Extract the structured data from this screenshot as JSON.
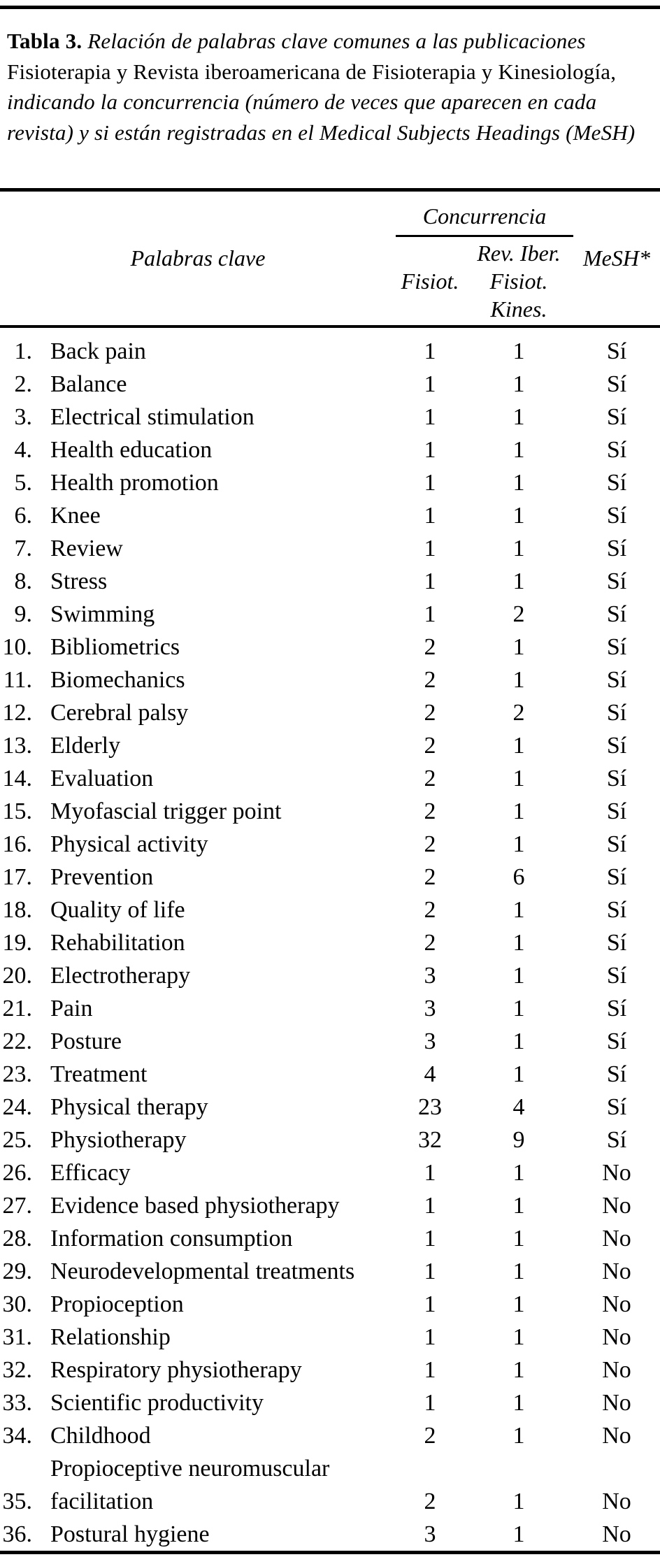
{
  "caption": {
    "segments": [
      {
        "style": "bold",
        "text": "Tabla 3. "
      },
      {
        "style": "italic",
        "text": "Relación de palabras clave comunes a las publicaciones "
      },
      {
        "style": "roman",
        "text": "Fisioterapia y Revista iberoamericana de Fisioterapia y Kinesiología, "
      },
      {
        "style": "italic",
        "text": "indicando la concurrencia (número de veces que aparecen en cada revista) y si están registradas en el Medical Subjects Headings (MeSH)"
      }
    ]
  },
  "table": {
    "headers": {
      "keywords": "Palabras clave",
      "concurrencia": "Concurrencia",
      "fisiot": "Fisiot.",
      "rev_iber_line1": "Rev. Iber.",
      "rev_iber_line2": "Fisiot. Kines.",
      "mesh": "MeSH*"
    },
    "rows": [
      {
        "num": "1.",
        "keyword": "Back pain",
        "fisiot": "1",
        "rev": "1",
        "mesh": "Sí"
      },
      {
        "num": "2.",
        "keyword": "Balance",
        "fisiot": "1",
        "rev": "1",
        "mesh": "Sí"
      },
      {
        "num": "3.",
        "keyword": "Electrical stimulation",
        "fisiot": "1",
        "rev": "1",
        "mesh": "Sí"
      },
      {
        "num": "4.",
        "keyword": "Health education",
        "fisiot": "1",
        "rev": "1",
        "mesh": "Sí"
      },
      {
        "num": "5.",
        "keyword": "Health promotion",
        "fisiot": "1",
        "rev": "1",
        "mesh": "Sí"
      },
      {
        "num": "6.",
        "keyword": "Knee",
        "fisiot": "1",
        "rev": "1",
        "mesh": "Sí"
      },
      {
        "num": "7.",
        "keyword": "Review",
        "fisiot": "1",
        "rev": "1",
        "mesh": "Sí"
      },
      {
        "num": "8.",
        "keyword": "Stress",
        "fisiot": "1",
        "rev": "1",
        "mesh": "Sí"
      },
      {
        "num": "9.",
        "keyword": "Swimming",
        "fisiot": "1",
        "rev": "2",
        "mesh": "Sí"
      },
      {
        "num": "10.",
        "keyword": "Bibliometrics",
        "fisiot": "2",
        "rev": "1",
        "mesh": "Sí"
      },
      {
        "num": "11.",
        "keyword": "Biomechanics",
        "fisiot": "2",
        "rev": "1",
        "mesh": "Sí"
      },
      {
        "num": "12.",
        "keyword": "Cerebral palsy",
        "fisiot": "2",
        "rev": "2",
        "mesh": "Sí"
      },
      {
        "num": "13.",
        "keyword": "Elderly",
        "fisiot": "2",
        "rev": "1",
        "mesh": "Sí"
      },
      {
        "num": "14.",
        "keyword": "Evaluation",
        "fisiot": "2",
        "rev": "1",
        "mesh": "Sí"
      },
      {
        "num": "15.",
        "keyword": "Myofascial trigger point",
        "fisiot": "2",
        "rev": "1",
        "mesh": "Sí"
      },
      {
        "num": "16.",
        "keyword": "Physical activity",
        "fisiot": "2",
        "rev": "1",
        "mesh": "Sí"
      },
      {
        "num": "17.",
        "keyword": "Prevention",
        "fisiot": "2",
        "rev": "6",
        "mesh": "Sí"
      },
      {
        "num": "18.",
        "keyword": "Quality of life",
        "fisiot": "2",
        "rev": "1",
        "mesh": "Sí"
      },
      {
        "num": "19.",
        "keyword": "Rehabilitation",
        "fisiot": "2",
        "rev": "1",
        "mesh": "Sí"
      },
      {
        "num": "20.",
        "keyword": "Electrotherapy",
        "fisiot": "3",
        "rev": "1",
        "mesh": "Sí"
      },
      {
        "num": "21.",
        "keyword": "Pain",
        "fisiot": "3",
        "rev": "1",
        "mesh": "Sí"
      },
      {
        "num": "22.",
        "keyword": "Posture",
        "fisiot": "3",
        "rev": "1",
        "mesh": "Sí"
      },
      {
        "num": "23.",
        "keyword": "Treatment",
        "fisiot": "4",
        "rev": "1",
        "mesh": "Sí"
      },
      {
        "num": "24.",
        "keyword": "Physical therapy",
        "fisiot": "23",
        "rev": "4",
        "mesh": "Sí"
      },
      {
        "num": "25.",
        "keyword": "Physiotherapy",
        "fisiot": "32",
        "rev": "9",
        "mesh": "Sí"
      },
      {
        "num": "26.",
        "keyword": "Efficacy",
        "fisiot": "1",
        "rev": "1",
        "mesh": "No"
      },
      {
        "num": "27.",
        "keyword": "Evidence based physiotherapy",
        "fisiot": "1",
        "rev": "1",
        "mesh": "No"
      },
      {
        "num": "28.",
        "keyword": "Information consumption",
        "fisiot": "1",
        "rev": "1",
        "mesh": "No"
      },
      {
        "num": "29.",
        "keyword": "Neurodevelopmental treatments",
        "fisiot": "1",
        "rev": "1",
        "mesh": "No"
      },
      {
        "num": "30.",
        "keyword": "Propioception",
        "fisiot": "1",
        "rev": "1",
        "mesh": "No"
      },
      {
        "num": "31.",
        "keyword": "Relationship",
        "fisiot": "1",
        "rev": "1",
        "mesh": "No"
      },
      {
        "num": "32.",
        "keyword": "Respiratory physiotherapy",
        "fisiot": "1",
        "rev": "1",
        "mesh": "No"
      },
      {
        "num": "33.",
        "keyword": "Scientific productivity",
        "fisiot": "1",
        "rev": "1",
        "mesh": "No"
      },
      {
        "num": "34.",
        "keyword": "Childhood",
        "fisiot": "2",
        "rev": "1",
        "mesh": "No"
      },
      {
        "num": "35.",
        "keyword": "Propioceptive neuromuscular facilitation",
        "fisiot": "2",
        "rev": "1",
        "mesh": "No"
      },
      {
        "num": "36.",
        "keyword": "Postural hygiene",
        "fisiot": "3",
        "rev": "1",
        "mesh": "No"
      }
    ]
  }
}
